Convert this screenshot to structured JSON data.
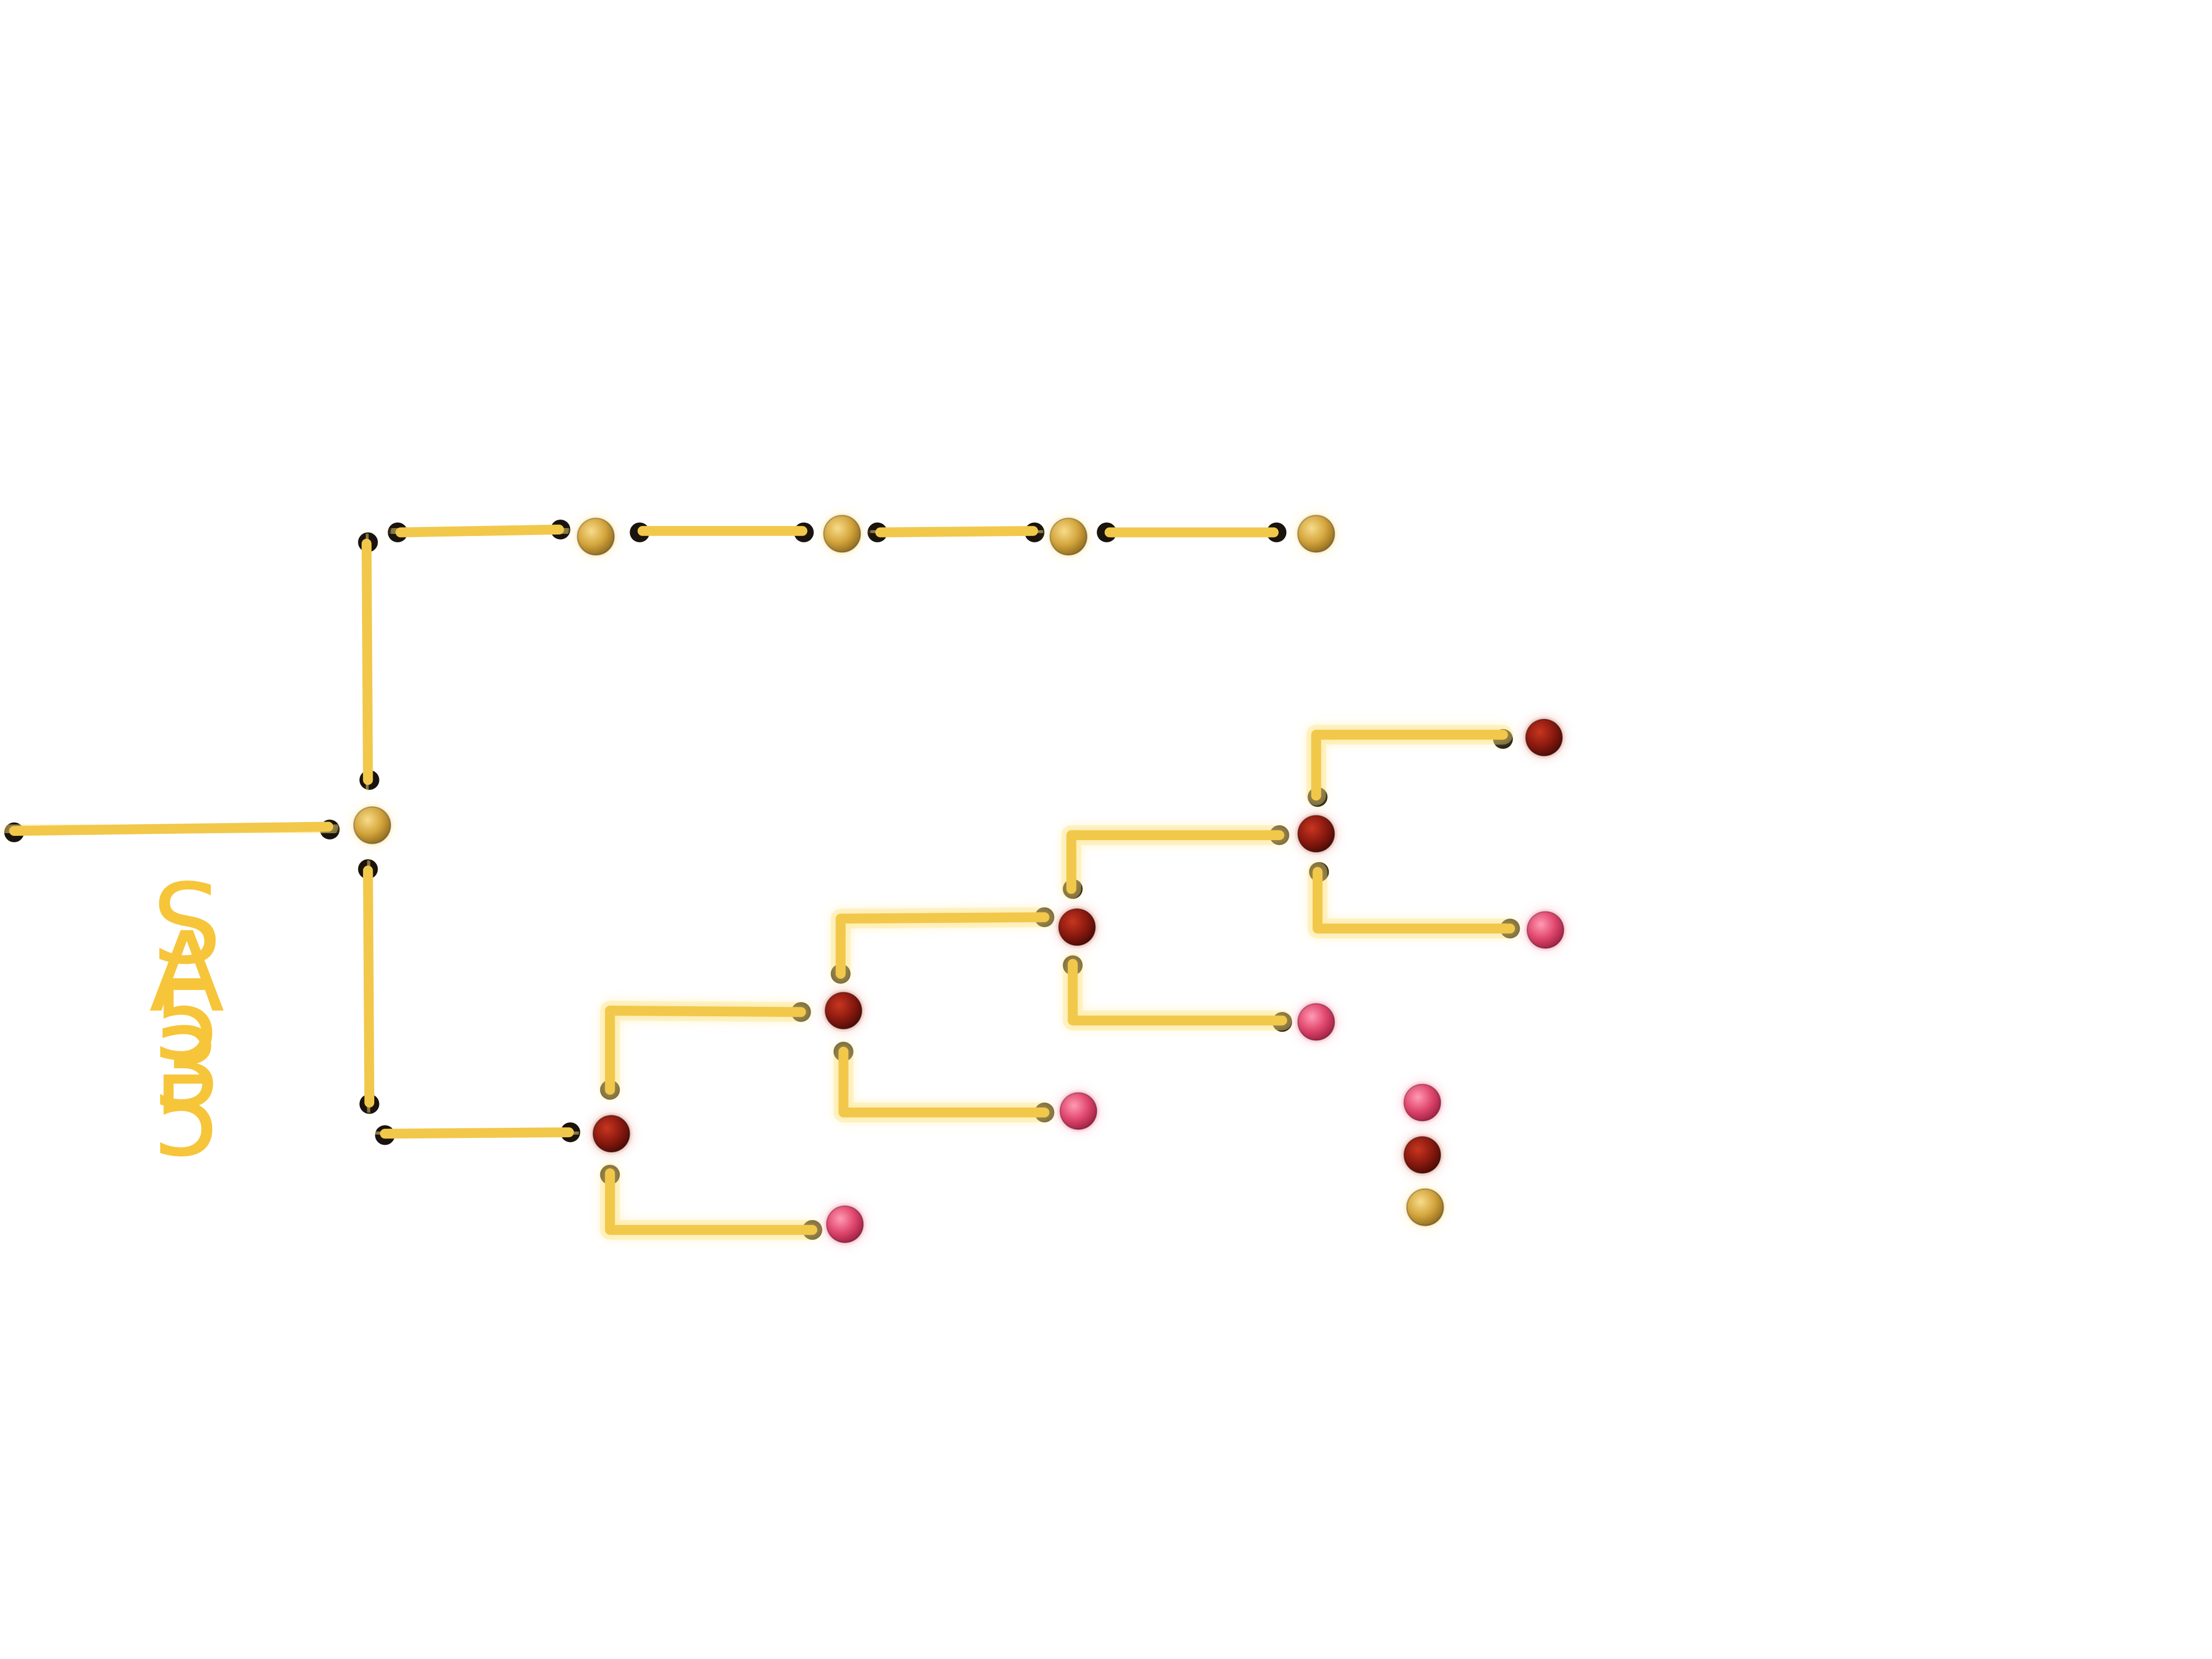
{
  "label": {
    "lines": [
      "S",
      "A",
      "5",
      "3",
      "5"
    ]
  },
  "colors": {
    "background": "#ffffff",
    "connector": "#f2c84b",
    "connector_glow": "#ffe37a",
    "endcap": "#1a140c",
    "node_gold": "#d4a53d",
    "node_darkred": "#8b1a10",
    "node_pink": "#e0476e",
    "label": "#f6c53a"
  },
  "node_types": [
    "gold",
    "darkred",
    "pink"
  ],
  "legend": {
    "items": [
      "pink",
      "darkred",
      "gold"
    ]
  }
}
